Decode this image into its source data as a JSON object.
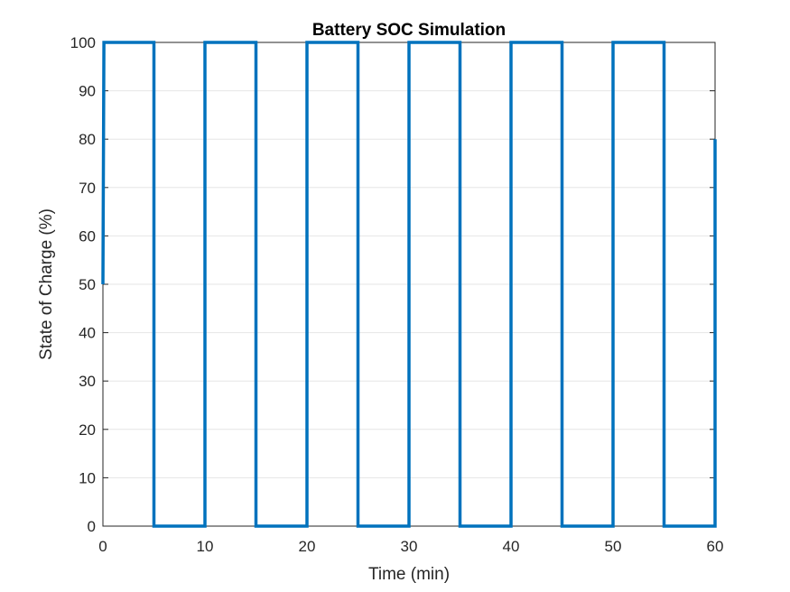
{
  "chart_data": {
    "type": "line",
    "title": "Battery SOC Simulation",
    "xlabel": "Time (min)",
    "ylabel": "State of Charge (%)",
    "xlim": [
      0,
      60
    ],
    "ylim": [
      0,
      100
    ],
    "xticks": [
      0,
      10,
      20,
      30,
      40,
      50,
      60
    ],
    "yticks": [
      0,
      10,
      20,
      30,
      40,
      50,
      60,
      70,
      80,
      90,
      100
    ],
    "grid": "horizontal",
    "series": [
      {
        "color": "#0072BD",
        "x": [
          0,
          0.1,
          5,
          5,
          10,
          10,
          15,
          15,
          20,
          20,
          25,
          25,
          30,
          30,
          35,
          35,
          40,
          40,
          45,
          45,
          50,
          50,
          55,
          55,
          60,
          60
        ],
        "y": [
          50,
          100,
          100,
          0,
          0,
          100,
          100,
          0,
          0,
          100,
          100,
          0,
          0,
          100,
          100,
          0,
          0,
          100,
          100,
          0,
          0,
          100,
          100,
          0,
          0,
          80
        ]
      }
    ]
  }
}
